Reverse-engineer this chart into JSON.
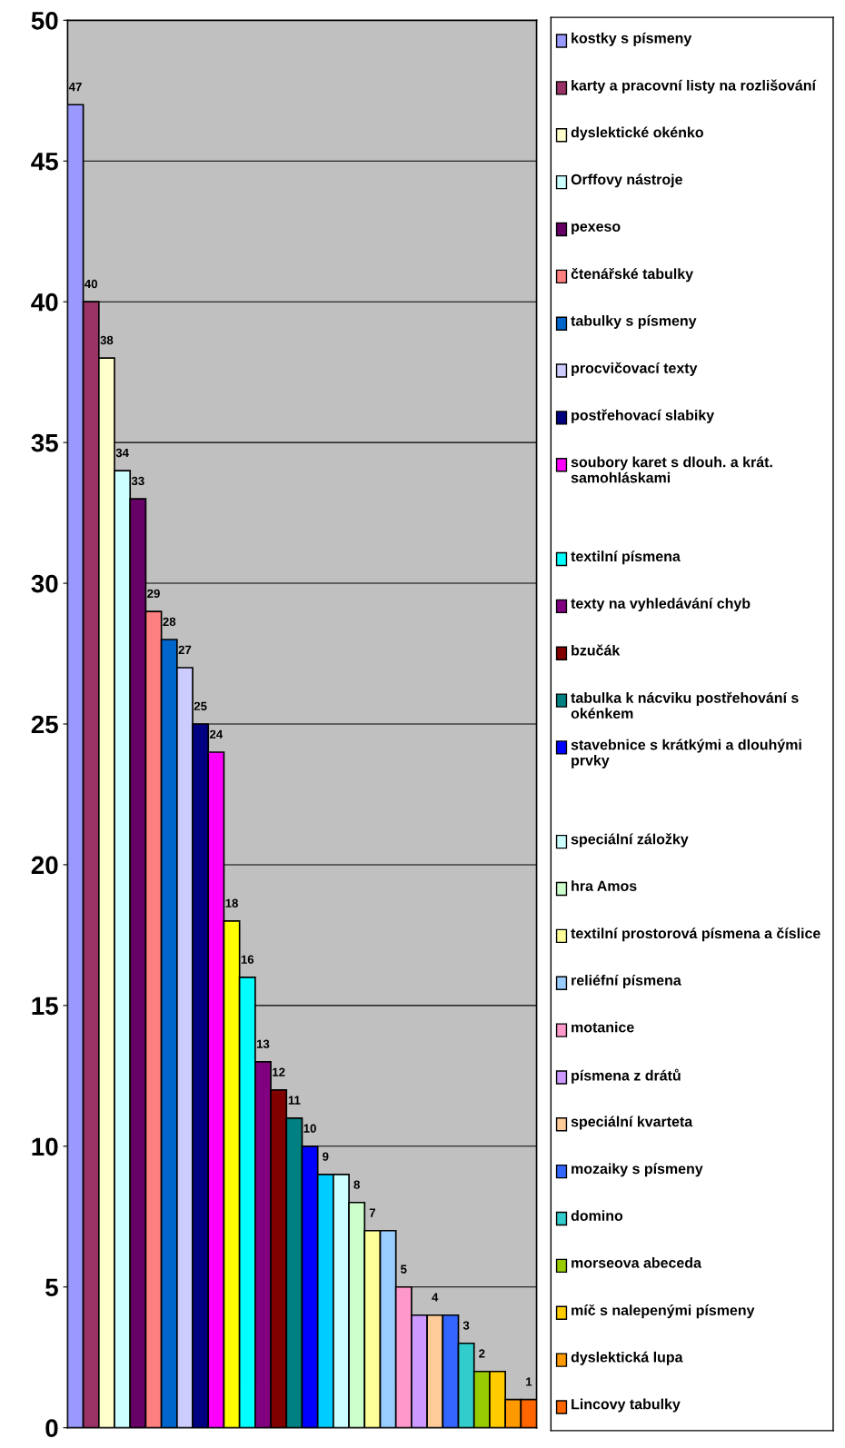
{
  "chart_data": {
    "type": "bar",
    "categories": [
      null
    ],
    "ylim": [
      0,
      50
    ],
    "yticks": [
      0,
      5,
      10,
      15,
      20,
      25,
      30,
      35,
      40,
      45,
      50
    ],
    "grid": "y",
    "legend": "right",
    "series": [
      {
        "name": "kostky s písmeny",
        "color": "#9999ff",
        "values": [
          47
        ],
        "value_labels": [
          "47"
        ]
      },
      {
        "name": "karty a pracovní listy na rozlišování",
        "color": "#993366",
        "values": [
          40
        ],
        "value_labels": [
          "40"
        ]
      },
      {
        "name": "dyslektické okénko",
        "color": "#ffffcc",
        "values": [
          38
        ],
        "value_labels": [
          "38"
        ]
      },
      {
        "name": "Orffovy nástroje",
        "color": "#ccffff",
        "values": [
          34
        ],
        "value_labels": [
          "34"
        ]
      },
      {
        "name": "pexeso",
        "color": "#660066",
        "values": [
          33
        ],
        "value_labels": [
          "33"
        ]
      },
      {
        "name": "čtenářské tabulky",
        "color": "#ff8080",
        "values": [
          29
        ],
        "value_labels": [
          "29"
        ]
      },
      {
        "name": "tabulky s písmeny",
        "color": "#0066cc",
        "values": [
          28
        ],
        "value_labels": [
          "28"
        ]
      },
      {
        "name": "procvičovací texty",
        "color": "#ccccff",
        "values": [
          27
        ],
        "value_labels": [
          "27"
        ]
      },
      {
        "name": "postřehovací slabiky",
        "color": "#000080",
        "values": [
          25
        ],
        "value_labels": [
          "25"
        ]
      },
      {
        "name": "soubory karet s dlouh. a krát. samohláskami",
        "color": "#ff00ff",
        "values": [
          24
        ],
        "value_labels": [
          "24"
        ]
      },
      {
        "name": null,
        "color": "#ffff00",
        "values": [
          18
        ],
        "value_labels": [
          "18"
        ]
      },
      {
        "name": "textilní písmena",
        "color": "#00ffff",
        "values": [
          16
        ],
        "value_labels": [
          "16"
        ]
      },
      {
        "name": "texty na vyhledávání chyb",
        "color": "#800080",
        "values": [
          13
        ],
        "value_labels": [
          "13"
        ]
      },
      {
        "name": "bzučák",
        "color": "#800000",
        "values": [
          12
        ],
        "value_labels": [
          "12"
        ]
      },
      {
        "name": "tabulka k nácviku postřehování s okénkem",
        "color": "#008080",
        "values": [
          11
        ],
        "value_labels": [
          "11"
        ]
      },
      {
        "name": "stavebnice s krátkými a dlouhými prvky",
        "color": "#0000ff",
        "values": [
          10
        ],
        "value_labels": [
          "10"
        ]
      },
      {
        "name": null,
        "color": "#00ccff",
        "values": [
          9
        ],
        "value_labels": [
          "9"
        ]
      },
      {
        "name": "speciální záložky",
        "color": "#ccffff",
        "values": [
          9
        ],
        "value_labels": [
          null
        ]
      },
      {
        "name": "hra Amos",
        "color": "#ccffcc",
        "values": [
          8
        ],
        "value_labels": [
          "8"
        ]
      },
      {
        "name": "textilní prostorová písmena a číslice",
        "color": "#ffff99",
        "values": [
          7
        ],
        "value_labels": [
          "7"
        ]
      },
      {
        "name": "reliéfní písmena",
        "color": "#99ccff",
        "values": [
          7
        ],
        "value_labels": [
          null
        ]
      },
      {
        "name": "motanice",
        "color": "#ff99cc",
        "values": [
          5
        ],
        "value_labels": [
          "5"
        ]
      },
      {
        "name": "písmena z drátů",
        "color": "#cc99ff",
        "values": [
          4
        ],
        "value_labels": [
          null
        ]
      },
      {
        "name": "speciální kvarteta",
        "color": "#ffcc99",
        "values": [
          4
        ],
        "value_labels": [
          "4"
        ]
      },
      {
        "name": "mozaiky s písmeny",
        "color": "#3366ff",
        "values": [
          4
        ],
        "value_labels": [
          null
        ]
      },
      {
        "name": "domino",
        "color": "#33cccc",
        "values": [
          3
        ],
        "value_labels": [
          "3"
        ]
      },
      {
        "name": "morseova abeceda",
        "color": "#99cc00",
        "values": [
          2
        ],
        "value_labels": [
          "2"
        ]
      },
      {
        "name": "míč s nalepenými písmeny",
        "color": "#ffcc00",
        "values": [
          2
        ],
        "value_labels": [
          null
        ]
      },
      {
        "name": "dyslektická lupa",
        "color": "#ff9900",
        "values": [
          1
        ],
        "value_labels": [
          null
        ]
      },
      {
        "name": "Lincovy tabulky",
        "color": "#ff6600",
        "values": [
          1
        ],
        "value_labels": [
          "1"
        ]
      }
    ]
  }
}
